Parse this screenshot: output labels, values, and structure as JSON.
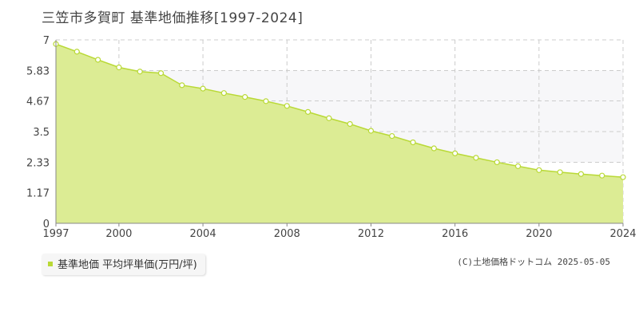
{
  "title": "三笠市多賀町 基準地価推移[1997-2024]",
  "legend": {
    "series_label": "基準地価 平均坪単価(万円/坪)",
    "marker_color": "#b9d936"
  },
  "credit": "(C)土地価格ドットコム 2025-05-05",
  "colors": {
    "area_fill": "#dcec94",
    "line": "#b9d936",
    "marker_fill": "#ffffff",
    "plot_bg_band": "#f7f7f9",
    "grid": "#cccccc",
    "axis": "#888888"
  },
  "chart_data": {
    "type": "area",
    "title": "三笠市多賀町 基準地価推移[1997-2024]",
    "xlim": [
      1997,
      2024
    ],
    "ylim": [
      0,
      7
    ],
    "x_ticks": [
      "1997",
      "2000",
      "2004",
      "2008",
      "2012",
      "2016",
      "2020",
      "2024"
    ],
    "y_ticks": [
      "0",
      "1.17",
      "2.33",
      "3.5",
      "4.67",
      "5.83",
      "7"
    ],
    "grid": true,
    "series": [
      {
        "name": "基準地価 平均坪単価(万円/坪)",
        "x": [
          1997,
          1998,
          1999,
          2000,
          2001,
          2002,
          2003,
          2004,
          2005,
          2006,
          2007,
          2008,
          2009,
          2010,
          2011,
          2012,
          2013,
          2014,
          2015,
          2016,
          2017,
          2018,
          2019,
          2020,
          2021,
          2022,
          2023,
          2024
        ],
        "values": [
          6.84,
          6.55,
          6.24,
          5.95,
          5.79,
          5.73,
          5.27,
          5.14,
          4.97,
          4.82,
          4.66,
          4.48,
          4.25,
          4.01,
          3.79,
          3.53,
          3.33,
          3.09,
          2.86,
          2.67,
          2.5,
          2.33,
          2.18,
          2.03,
          1.95,
          1.88,
          1.82,
          1.76
        ]
      }
    ]
  }
}
